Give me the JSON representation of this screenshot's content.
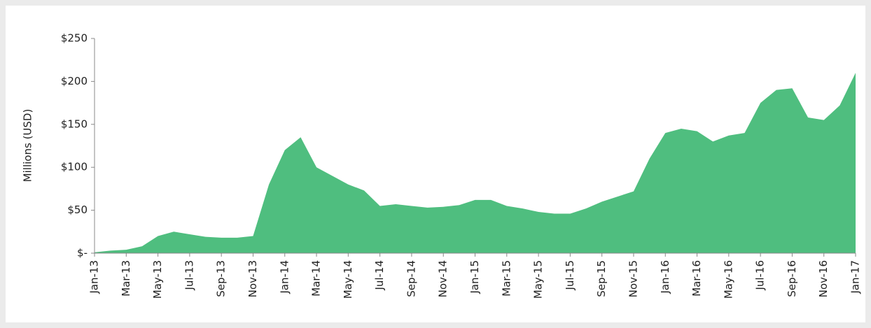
{
  "chart_data": {
    "type": "area",
    "ylabel": "Millions (USD)",
    "color": "#4fbe7f",
    "categories": [
      "Jan-13",
      null,
      "Mar-13",
      null,
      "May-13",
      null,
      "Jul-13",
      null,
      "Sep-13",
      null,
      "Nov-13",
      null,
      "Jan-14",
      null,
      "Mar-14",
      null,
      "May-14",
      null,
      "Jul-14",
      null,
      "Sep-14",
      null,
      "Nov-14",
      null,
      "Jan-15",
      null,
      "Mar-15",
      null,
      "May-15",
      null,
      "Jul-15",
      null,
      "Sep-15",
      null,
      "Nov-15",
      null,
      "Jan-16",
      null,
      "Mar-16",
      null,
      "May-16",
      null,
      "Jul-16",
      null,
      "Sep-16",
      null,
      "Nov-16",
      null,
      "Jan-17"
    ],
    "values": [
      1,
      3,
      4,
      8,
      20,
      25,
      22,
      19,
      18,
      18,
      20,
      80,
      120,
      135,
      100,
      90,
      80,
      73,
      55,
      57,
      55,
      53,
      54,
      56,
      62,
      62,
      55,
      52,
      48,
      46,
      46,
      52,
      60,
      66,
      72,
      110,
      140,
      145,
      142,
      130,
      137,
      140,
      175,
      190,
      192,
      158,
      155,
      172,
      210
    ],
    "ylim": [
      0,
      250
    ],
    "yticks": [
      {
        "value": 0,
        "label": "$-"
      },
      {
        "value": 50,
        "label": "$50"
      },
      {
        "value": 100,
        "label": "$100"
      },
      {
        "value": 150,
        "label": "$150"
      },
      {
        "value": 200,
        "label": "$200"
      },
      {
        "value": 250,
        "label": "$250"
      }
    ]
  }
}
